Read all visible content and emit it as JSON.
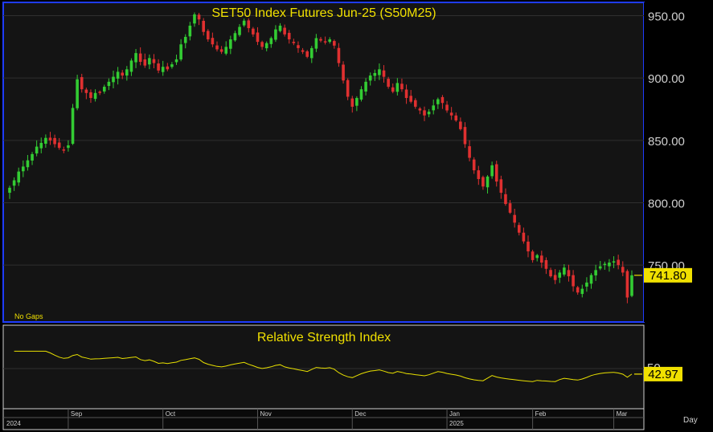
{
  "chart_data": [
    {
      "type": "candlestick",
      "title": "SET50 Index Futures Jun-25 (S50M25)",
      "note": "No Gaps",
      "ylim": [
        705,
        960
      ],
      "yticks": [
        750,
        800,
        850,
        900,
        950
      ],
      "ytick_labels": [
        "750.00",
        "800.00",
        "850.00",
        "900.00",
        "950.00"
      ],
      "last_value_label": "741.80",
      "last_value": 741.8,
      "closes": [
        812,
        818,
        825,
        829,
        834,
        839,
        845,
        848,
        852,
        850,
        847,
        844,
        842,
        846,
        876,
        899,
        891,
        888,
        884,
        888,
        889,
        893,
        897,
        901,
        905,
        902,
        907,
        914,
        920,
        913,
        910,
        916,
        912,
        906,
        909,
        907,
        911,
        915,
        927,
        933,
        942,
        951,
        947,
        937,
        931,
        927,
        923,
        921,
        925,
        931,
        936,
        941,
        946,
        940,
        935,
        929,
        925,
        928,
        932,
        939,
        942,
        935,
        931,
        928,
        924,
        921,
        917,
        924,
        932,
        930,
        929,
        931,
        926,
        912,
        898,
        885,
        877,
        884,
        891,
        897,
        902,
        904,
        907,
        901,
        893,
        889,
        896,
        891,
        884,
        881,
        877,
        874,
        870,
        873,
        878,
        883,
        880,
        874,
        870,
        866,
        859,
        847,
        836,
        826,
        819,
        813,
        821,
        830,
        817,
        808,
        799,
        792,
        784,
        776,
        769,
        761,
        754,
        758,
        752,
        747,
        741,
        738,
        744,
        748,
        741,
        733,
        728,
        731,
        736,
        742,
        746,
        749,
        751,
        752,
        753,
        750,
        744,
        724,
        741.8
      ],
      "color_up": "#33cc33",
      "color_down": "#e03030"
    },
    {
      "type": "line",
      "title": "Relative Strength Index",
      "ytick_labels": [
        "50"
      ],
      "ylim": [
        0,
        100
      ],
      "last_value_label": "42.97",
      "last_value": 42.97,
      "color": "#e8e000"
    }
  ],
  "x_axis": {
    "months": [
      "Sep",
      "Oct",
      "Nov",
      "Dec",
      "Jan",
      "Feb",
      "Mar"
    ],
    "years": [
      "2024",
      "2025"
    ],
    "period_label": "Day"
  }
}
